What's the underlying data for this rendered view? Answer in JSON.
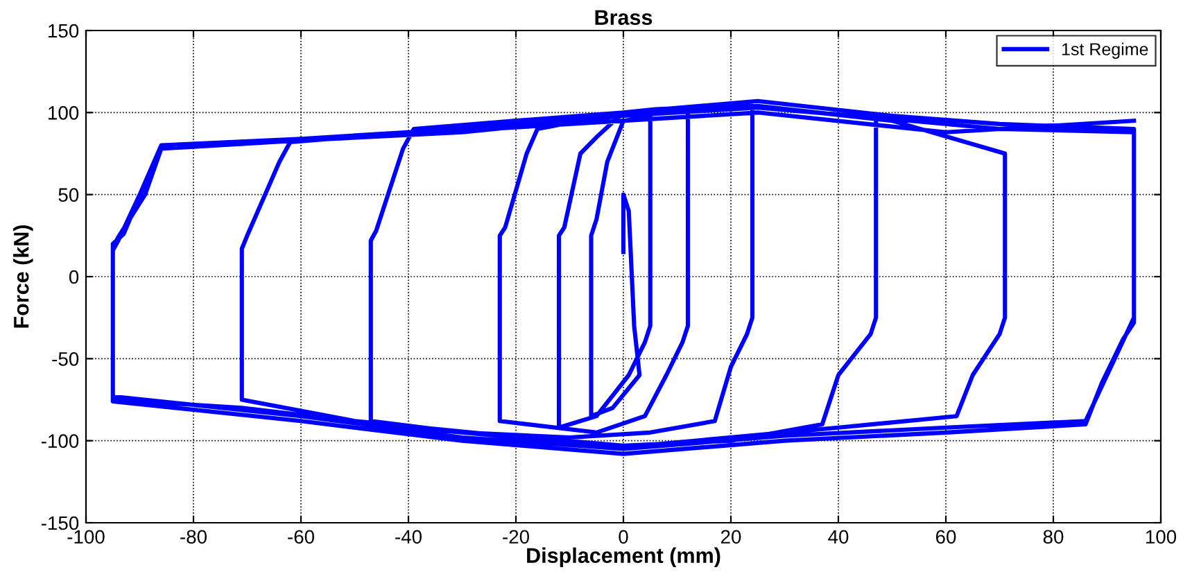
{
  "chart_data": {
    "type": "line",
    "title": "Brass",
    "xlabel": "Displacement (mm)",
    "ylabel": "Force (kN)",
    "xlim": [
      -100,
      100
    ],
    "xticks": [
      -100,
      -80,
      -60,
      -40,
      -20,
      0,
      20,
      40,
      60,
      80,
      100
    ],
    "ylim": [
      -150,
      150
    ],
    "yticks": [
      -150,
      -100,
      -50,
      0,
      50,
      100,
      150
    ],
    "grid": true,
    "legend": "top right",
    "line_style": "solid",
    "marker": "none",
    "series": [
      {
        "name": "1st Regime",
        "color": "#0000ff",
        "x": [
          0,
          0,
          1,
          2,
          3,
          -2,
          -6,
          -6,
          -5,
          -3,
          0,
          4,
          5,
          5,
          4,
          1,
          -5,
          -12,
          -12,
          -11,
          -8,
          -5,
          0,
          6,
          12,
          12,
          11,
          8,
          4,
          -5,
          -23,
          -23,
          -22,
          -18,
          -16,
          0,
          12,
          24,
          24,
          23,
          20,
          17,
          5,
          -10,
          -30,
          -47,
          -47,
          -46,
          -41,
          -39,
          -20,
          0,
          25,
          47,
          47,
          46,
          40,
          37,
          20,
          0,
          -25,
          -50,
          -71,
          -71,
          -70,
          -64,
          -62,
          -40,
          0,
          25,
          50,
          71,
          71,
          70,
          65,
          62,
          40,
          0,
          -40,
          -71,
          -95,
          -95,
          -94,
          -90,
          -86,
          -60,
          -30,
          0,
          25,
          50,
          70,
          95,
          95,
          94,
          90,
          86,
          60,
          30,
          0,
          -30,
          -60,
          -95,
          -95,
          -94,
          -89,
          -86,
          -60,
          -30,
          0,
          25,
          50,
          70,
          95,
          95,
          93,
          89,
          86,
          60,
          30,
          0,
          -30,
          -60,
          -95,
          -95,
          -93,
          -86,
          -50,
          0,
          25,
          60,
          95
        ],
        "values": [
          15,
          50,
          40,
          -30,
          -60,
          -80,
          -85,
          25,
          35,
          70,
          95,
          97,
          98,
          -30,
          -40,
          -60,
          -85,
          -92,
          25,
          30,
          75,
          85,
          100,
          102,
          103,
          -30,
          -40,
          -60,
          -85,
          -95,
          -88,
          25,
          30,
          75,
          90,
          100,
          103,
          104,
          -25,
          -35,
          -55,
          -88,
          -95,
          -98,
          -95,
          -88,
          22,
          28,
          78,
          90,
          95,
          100,
          103,
          97,
          -25,
          -35,
          -60,
          -90,
          -100,
          -103,
          -96,
          -88,
          -75,
          17,
          25,
          70,
          82,
          88,
          100,
          104,
          95,
          75,
          -25,
          -35,
          -60,
          -85,
          -92,
          -104,
          -92,
          -80,
          -75,
          16,
          22,
          50,
          80,
          84,
          90,
          100,
          107,
          98,
          93,
          90,
          -25,
          -32,
          -60,
          -88,
          -92,
          -97,
          -105,
          -98,
          -85,
          -73,
          18,
          24,
          50,
          78,
          83,
          88,
          98,
          103,
          96,
          90,
          88,
          -28,
          -38,
          -65,
          -90,
          -95,
          -100,
          -108,
          -100,
          -88,
          -76,
          20,
          26,
          80,
          85,
          95,
          100,
          88,
          95
        ]
      }
    ]
  }
}
